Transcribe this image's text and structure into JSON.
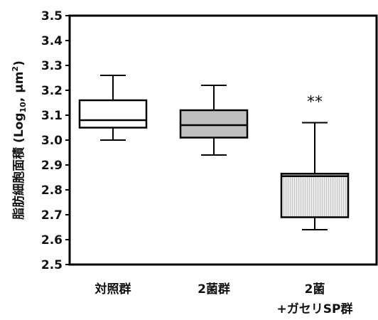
{
  "chart_data": {
    "type": "box",
    "ylabel": "脂肪細胞面積 (Log10, μm2)",
    "ylabel_main": "脂肪細胞面積 (Log",
    "ylabel_sub": "10",
    "ylabel_mid": ", μm",
    "ylabel_sup": "2",
    "ylabel_end": ")",
    "ylim": [
      2.5,
      3.5
    ],
    "yticks": [
      "2.5",
      "2.6",
      "2.7",
      "2.8",
      "2.9",
      "3.0",
      "3.1",
      "3.2",
      "3.3",
      "3.4",
      "3.5"
    ],
    "ytick_values": [
      2.5,
      2.6,
      2.7,
      2.8,
      2.9,
      3.0,
      3.1,
      3.2,
      3.3,
      3.4,
      3.5
    ],
    "categories": [
      "対照群",
      "2菌群",
      "2菌\n+ガセリSP群"
    ],
    "category_lines": [
      [
        "対照群"
      ],
      [
        "2菌群"
      ],
      [
        "2菌",
        "+ガセリSP群"
      ]
    ],
    "boxes": [
      {
        "min": 3.0,
        "q1": 3.05,
        "median": 3.08,
        "q3": 3.16,
        "max": 3.26,
        "fill": "#ffffff",
        "pattern": "none"
      },
      {
        "min": 2.94,
        "q1": 3.01,
        "median": 3.06,
        "q3": 3.12,
        "max": 3.22,
        "fill": "#c0c0c0",
        "pattern": "none"
      },
      {
        "min": 2.64,
        "q1": 2.69,
        "median": 2.855,
        "q3": 2.865,
        "max": 3.07,
        "fill": "#e8e8e8",
        "pattern": "vertical-lines"
      }
    ],
    "annotations": [
      {
        "category_index": 2,
        "text": "**"
      }
    ],
    "grid": false
  }
}
